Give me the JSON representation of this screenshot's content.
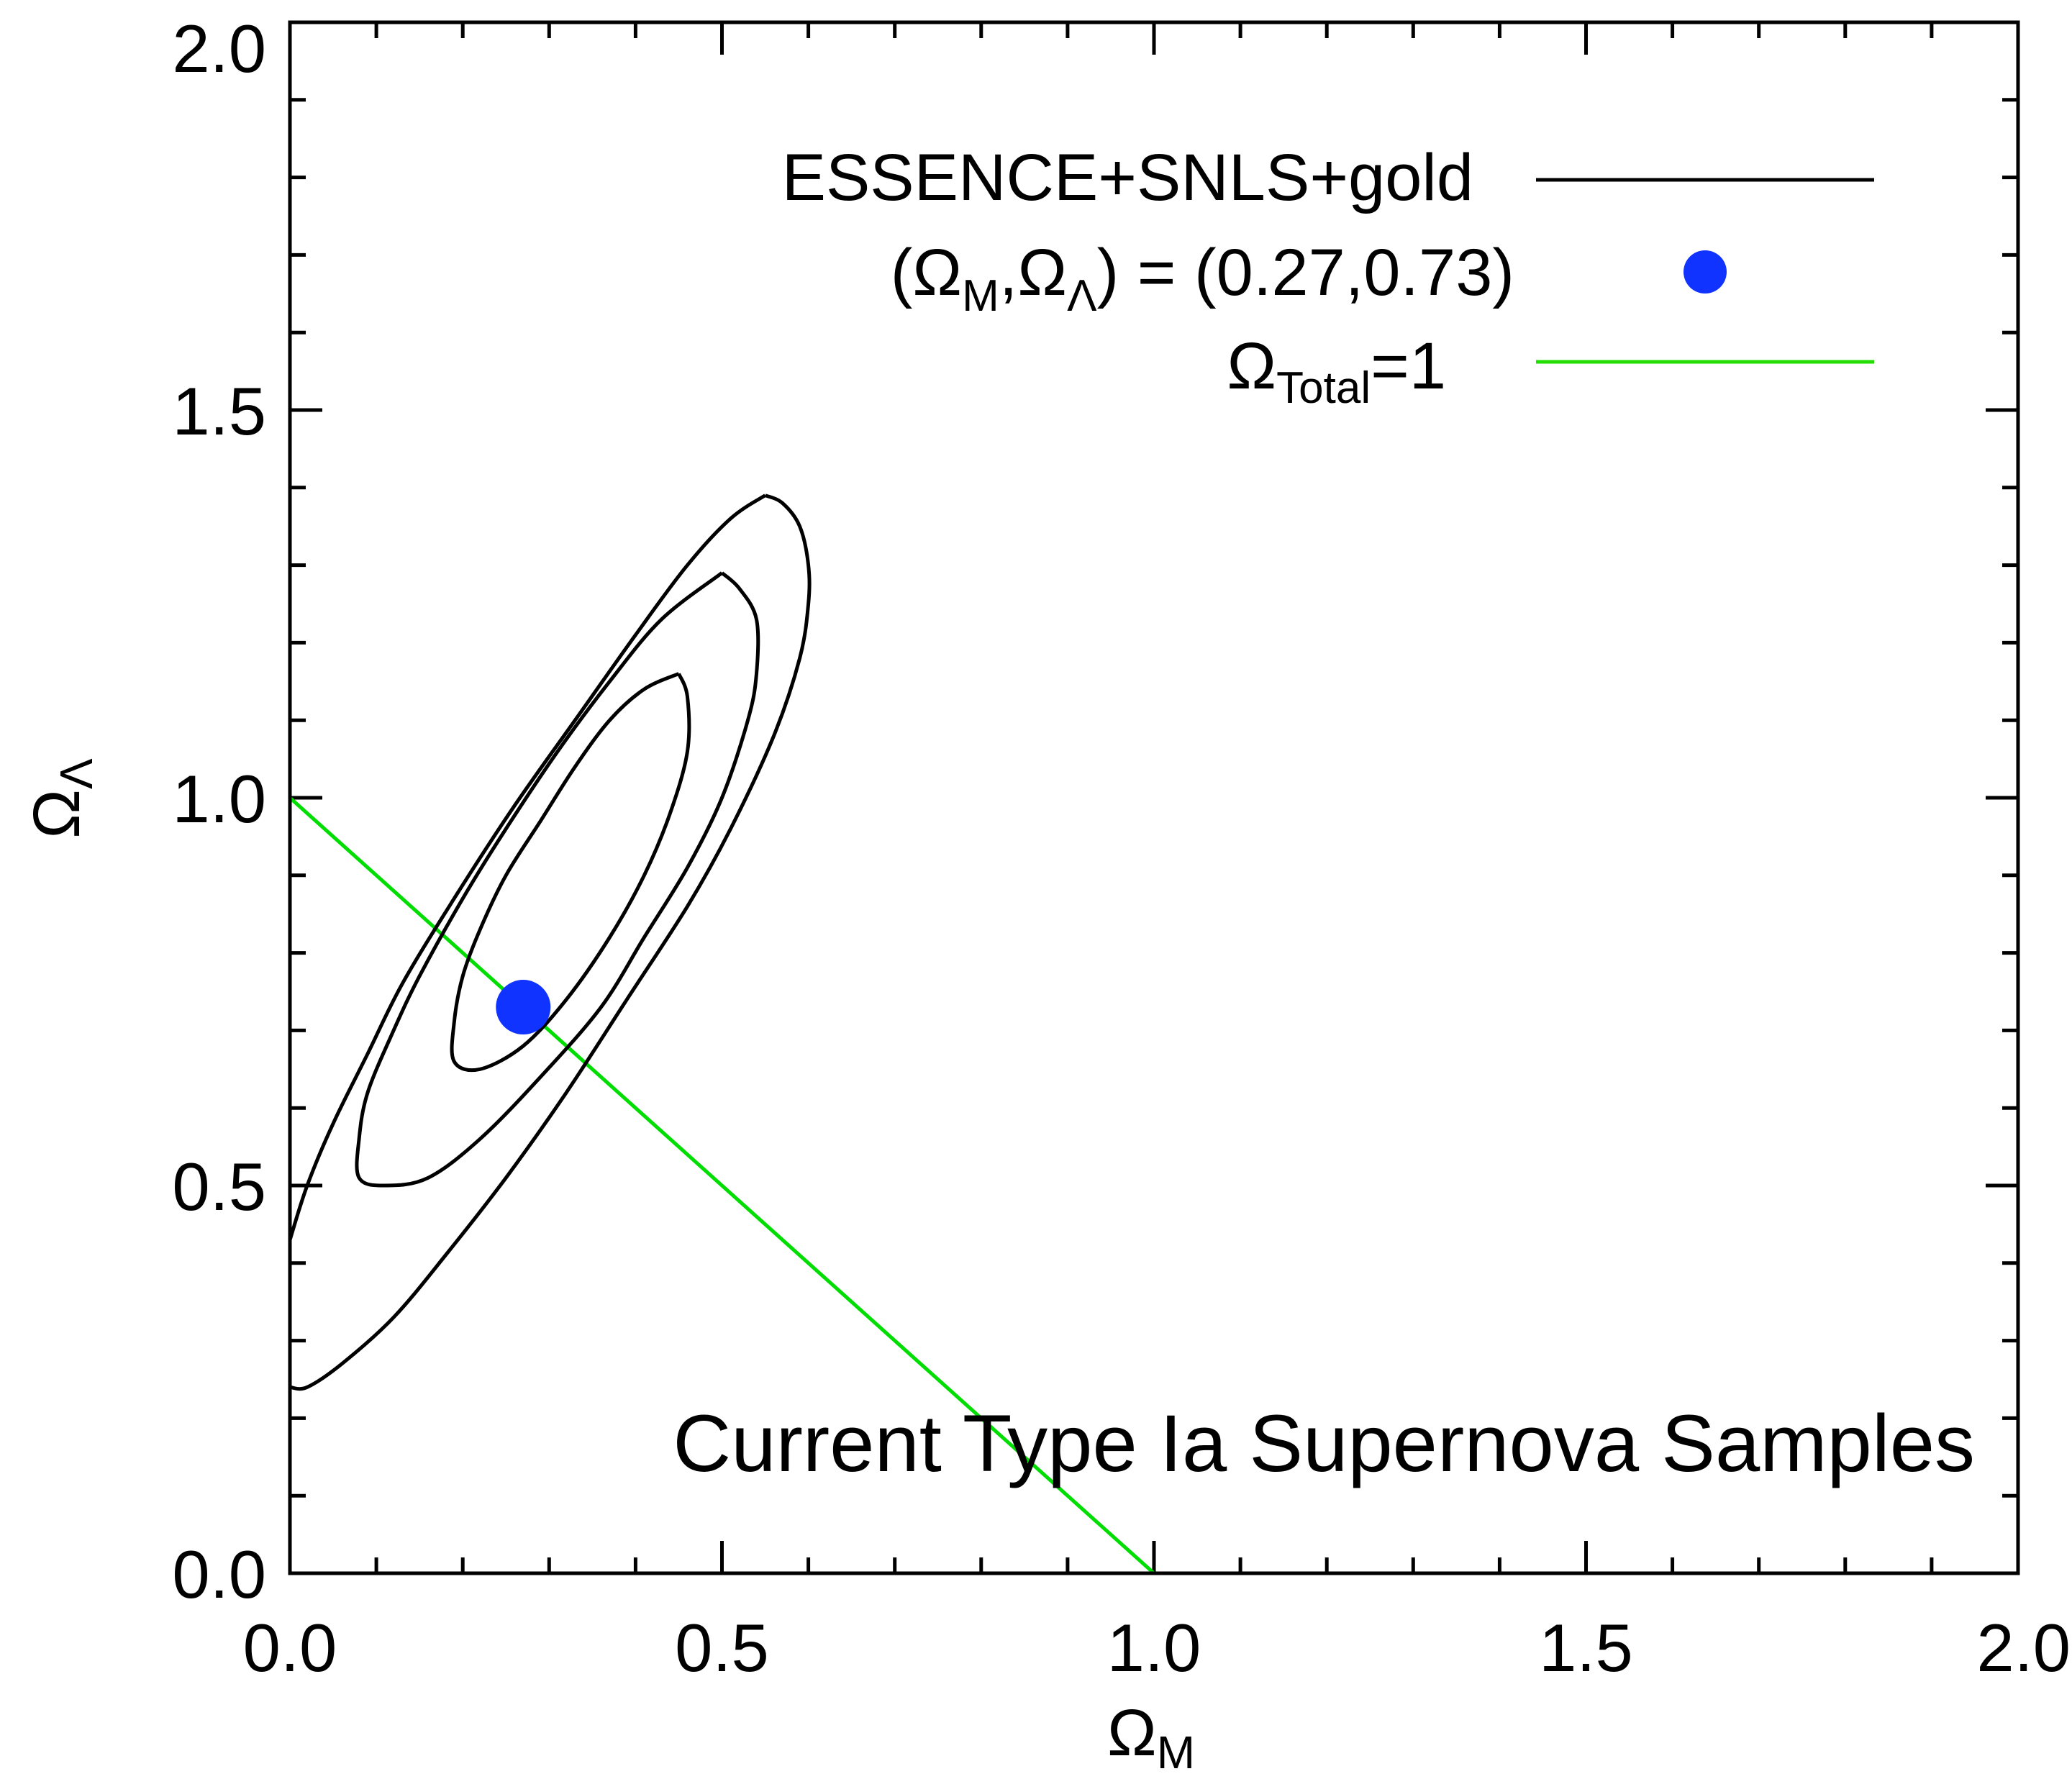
{
  "chart_data": {
    "type": "line",
    "xlabel": "Ω",
    "xlabel_sub": "M",
    "ylabel": "Ω",
    "ylabel_sub": "Λ",
    "xlim": [
      0.0,
      2.0
    ],
    "ylim": [
      0.0,
      2.0
    ],
    "x_tick_labels": [
      "0.0",
      "0.5",
      "1.0",
      "1.5",
      "2.0"
    ],
    "y_tick_labels": [
      "0.0",
      "0.5",
      "1.0",
      "1.5",
      "2.0"
    ],
    "x_tick_values": [
      0.0,
      0.5,
      1.0,
      1.5,
      2.0
    ],
    "y_tick_values": [
      0.0,
      0.5,
      1.0,
      1.5,
      2.0
    ],
    "minor_tick_step": 0.1,
    "grid": false,
    "legend_position": "top-right",
    "annotation": "Current Type Ia Supernova Samples",
    "series": [
      {
        "name": "ESSENCE+SNLS+gold",
        "kind": "contours",
        "color": "#000000",
        "contours": [
          {
            "level": "inner",
            "points": [
              [
                0.45,
                1.16
              ],
              [
                0.46,
                1.13
              ],
              [
                0.46,
                1.06
              ],
              [
                0.44,
                0.98
              ],
              [
                0.41,
                0.9
              ],
              [
                0.37,
                0.82
              ],
              [
                0.32,
                0.74
              ],
              [
                0.27,
                0.68
              ],
              [
                0.22,
                0.65
              ],
              [
                0.19,
                0.66
              ],
              [
                0.19,
                0.71
              ],
              [
                0.2,
                0.77
              ],
              [
                0.22,
                0.83
              ],
              [
                0.25,
                0.9
              ],
              [
                0.29,
                0.97
              ],
              [
                0.33,
                1.04
              ],
              [
                0.37,
                1.1
              ],
              [
                0.41,
                1.14
              ],
              [
                0.45,
                1.16
              ]
            ]
          },
          {
            "level": "middle",
            "points": [
              [
                0.5,
                1.29
              ],
              [
                0.52,
                1.27
              ],
              [
                0.54,
                1.23
              ],
              [
                0.54,
                1.16
              ],
              [
                0.53,
                1.1
              ],
              [
                0.5,
                1.0
              ],
              [
                0.46,
                0.91
              ],
              [
                0.41,
                0.82
              ],
              [
                0.36,
                0.73
              ],
              [
                0.29,
                0.64
              ],
              [
                0.22,
                0.56
              ],
              [
                0.16,
                0.51
              ],
              [
                0.11,
                0.5
              ],
              [
                0.08,
                0.51
              ],
              [
                0.08,
                0.56
              ],
              [
                0.09,
                0.62
              ],
              [
                0.12,
                0.7
              ],
              [
                0.15,
                0.77
              ],
              [
                0.2,
                0.87
              ],
              [
                0.25,
                0.96
              ],
              [
                0.31,
                1.06
              ],
              [
                0.37,
                1.15
              ],
              [
                0.43,
                1.23
              ],
              [
                0.5,
                1.29
              ]
            ]
          },
          {
            "level": "outer",
            "points": [
              [
                0.55,
                1.39
              ],
              [
                0.57,
                1.38
              ],
              [
                0.59,
                1.35
              ],
              [
                0.6,
                1.3
              ],
              [
                0.6,
                1.25
              ],
              [
                0.59,
                1.18
              ],
              [
                0.56,
                1.08
              ],
              [
                0.51,
                0.96
              ],
              [
                0.46,
                0.86
              ],
              [
                0.39,
                0.74
              ],
              [
                0.32,
                0.62
              ],
              [
                0.25,
                0.51
              ],
              [
                0.18,
                0.41
              ],
              [
                0.12,
                0.33
              ],
              [
                0.06,
                0.27
              ],
              [
                0.02,
                0.24
              ],
              [
                0.0,
                0.24
              ]
            ]
          },
          {
            "level": "outer-upper",
            "points": [
              [
                0.0,
                0.43
              ],
              [
                0.02,
                0.5
              ],
              [
                0.05,
                0.58
              ],
              [
                0.09,
                0.67
              ],
              [
                0.13,
                0.76
              ],
              [
                0.19,
                0.87
              ],
              [
                0.26,
                0.99
              ],
              [
                0.33,
                1.1
              ],
              [
                0.4,
                1.21
              ],
              [
                0.46,
                1.3
              ],
              [
                0.51,
                1.36
              ],
              [
                0.55,
                1.39
              ]
            ]
          }
        ]
      },
      {
        "name": "(Ω_M,Ω_Λ) = (0.27,0.73)",
        "kind": "point",
        "color": "#1133ff",
        "x": [
          0.27
        ],
        "y": [
          0.73
        ]
      },
      {
        "name": "Ω_Total=1",
        "kind": "line",
        "color": "#00dd00",
        "x": [
          0.0,
          1.0
        ],
        "y": [
          1.0,
          0.0
        ]
      }
    ]
  },
  "legend": {
    "entry1": "ESSENCE+SNLS+gold",
    "entry2_open": "(Ω",
    "entry2_sub1": "M",
    "entry2_mid": ",Ω",
    "entry2_sub2": "Λ",
    "entry2_close": ") = (0.27,0.73)",
    "entry3_main": "Ω",
    "entry3_sub": "Total",
    "entry3_tail": "=1"
  }
}
